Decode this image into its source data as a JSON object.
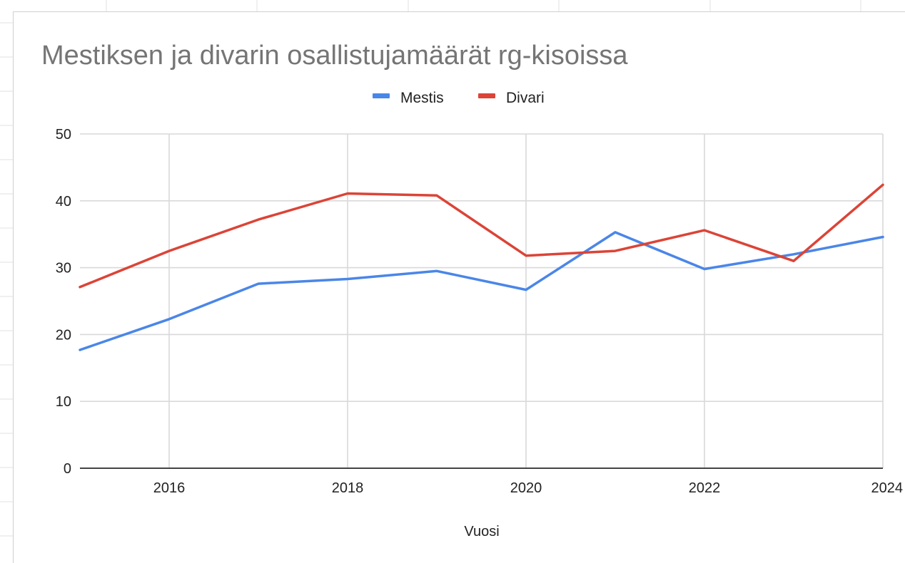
{
  "chart_data": {
    "type": "line",
    "title": "Mestiksen ja divarin osallistujamäärät rg-kisoissa",
    "xlabel": "Vuosi",
    "ylabel": "",
    "x": [
      2015,
      2016,
      2017,
      2018,
      2019,
      2020,
      2021,
      2022,
      2023,
      2024
    ],
    "xlim": [
      2015,
      2024
    ],
    "xticks": [
      2016,
      2018,
      2020,
      2022,
      2024
    ],
    "ylim": [
      0,
      50
    ],
    "yticks": [
      0,
      10,
      20,
      30,
      40,
      50
    ],
    "grid": true,
    "legend": "top-center",
    "series": [
      {
        "name": "Mestis",
        "color": "#4a86e8",
        "values": [
          17.7,
          22.3,
          27.6,
          28.3,
          29.5,
          26.7,
          35.3,
          29.8,
          32.0,
          34.6
        ]
      },
      {
        "name": "Divari",
        "color": "#db4437",
        "values": [
          27.1,
          32.5,
          37.2,
          41.1,
          40.8,
          31.8,
          32.5,
          35.6,
          31.0,
          42.4
        ]
      }
    ]
  }
}
